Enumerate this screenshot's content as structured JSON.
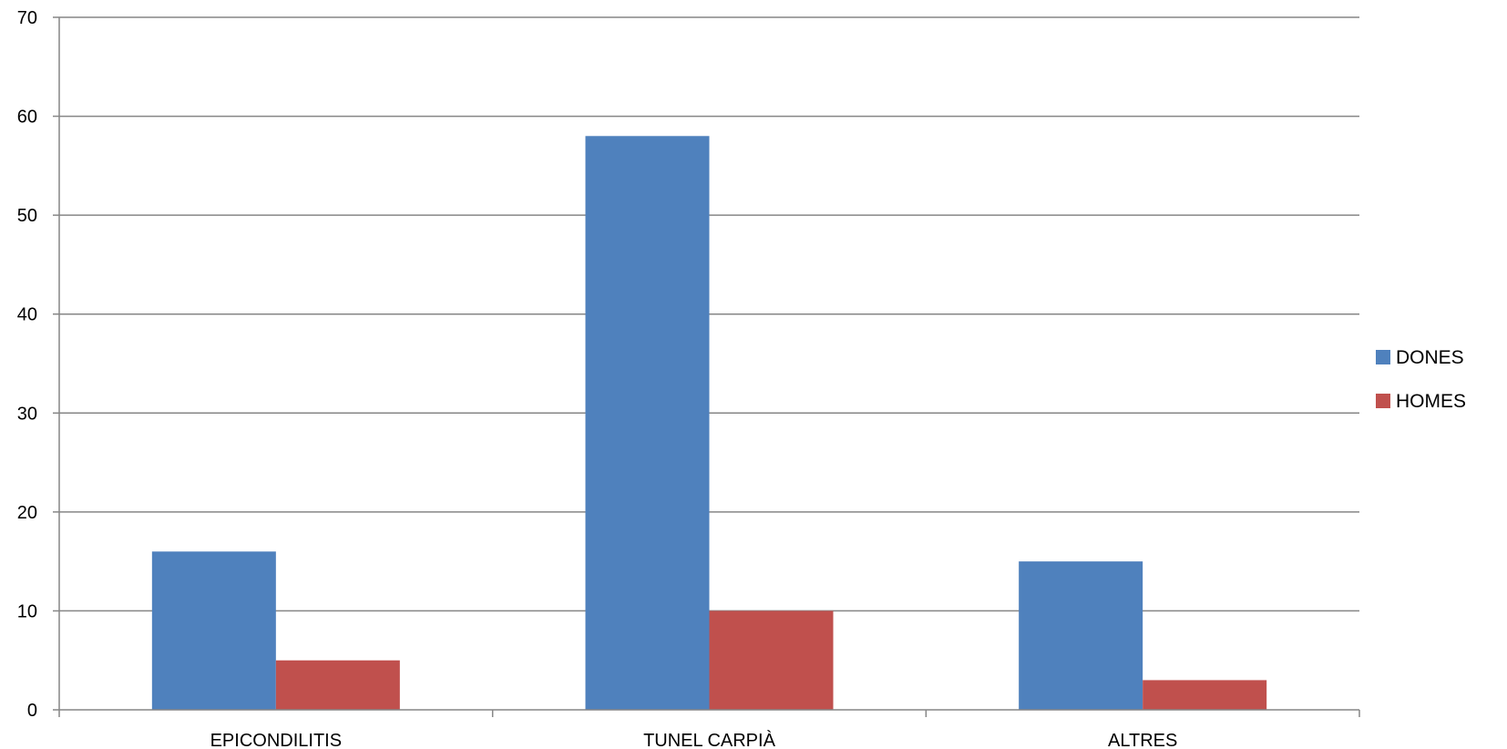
{
  "chart_data": {
    "type": "bar",
    "categories": [
      "EPICONDILITIS",
      "TUNEL CARPIÀ",
      "ALTRES"
    ],
    "series": [
      {
        "name": "DONES",
        "values": [
          16,
          58,
          15
        ],
        "color": "#4F81BD"
      },
      {
        "name": "HOMES",
        "values": [
          5,
          10,
          3
        ],
        "color": "#C0504D"
      }
    ],
    "yticks": [
      0,
      10,
      20,
      30,
      40,
      50,
      60,
      70
    ],
    "ylim": [
      0,
      70
    ],
    "grid": true,
    "legend_position": "right"
  }
}
